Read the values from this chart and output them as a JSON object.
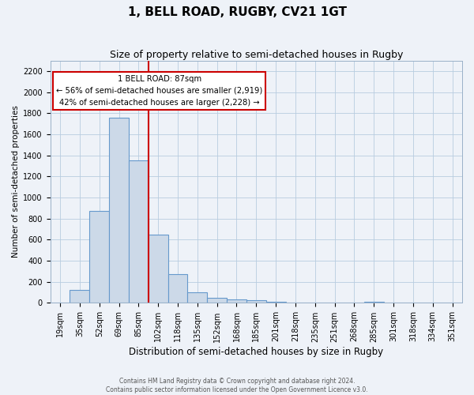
{
  "title": "1, BELL ROAD, RUGBY, CV21 1GT",
  "subtitle": "Size of property relative to semi-detached houses in Rugby",
  "xlabel": "Distribution of semi-detached houses by size in Rugby",
  "ylabel": "Number of semi-detached properties",
  "footer_line1": "Contains HM Land Registry data © Crown copyright and database right 2024.",
  "footer_line2": "Contains public sector information licensed under the Open Government Licence v3.0.",
  "bin_labels": [
    "19sqm",
    "35sqm",
    "52sqm",
    "69sqm",
    "85sqm",
    "102sqm",
    "118sqm",
    "135sqm",
    "152sqm",
    "168sqm",
    "185sqm",
    "201sqm",
    "218sqm",
    "235sqm",
    "251sqm",
    "268sqm",
    "285sqm",
    "301sqm",
    "318sqm",
    "334sqm",
    "351sqm"
  ],
  "bar_heights": [
    0,
    120,
    870,
    1760,
    1350,
    645,
    270,
    100,
    50,
    35,
    25,
    10,
    0,
    0,
    0,
    0,
    10,
    0,
    0,
    0,
    0
  ],
  "bar_color": "#ccd9e8",
  "bar_edge_color": "#6699cc",
  "property_bin_index": 4,
  "annotation_title": "1 BELL ROAD: 87sqm",
  "annotation_line1": "← 56% of semi-detached houses are smaller (2,919)",
  "annotation_line2": "42% of semi-detached houses are larger (2,228) →",
  "annotation_box_color": "#ffffff",
  "annotation_box_edge": "#cc0000",
  "vline_color": "#cc0000",
  "ylim": [
    0,
    2300
  ],
  "yticks": [
    0,
    200,
    400,
    600,
    800,
    1000,
    1200,
    1400,
    1600,
    1800,
    2000,
    2200
  ],
  "grid_color": "#b8cce0",
  "bg_color": "#eef2f8",
  "title_fontsize": 11,
  "subtitle_fontsize": 9,
  "xlabel_fontsize": 8.5,
  "ylabel_fontsize": 7.5,
  "tick_fontsize": 7,
  "footer_fontsize": 5.5
}
